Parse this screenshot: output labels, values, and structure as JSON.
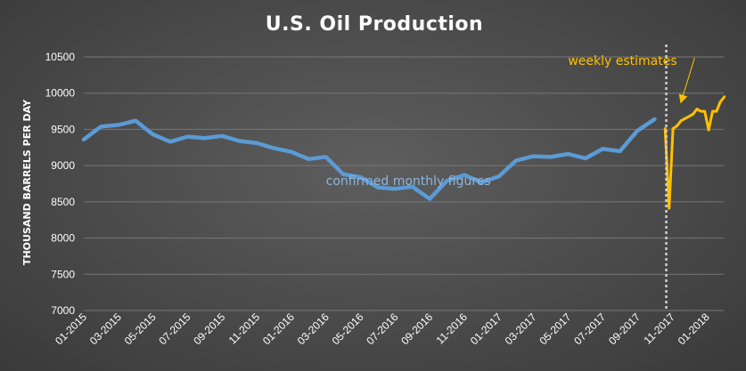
{
  "chart_data": {
    "type": "line",
    "title": "U.S. Oil Production",
    "ylabel": "THOUSAND BARRELS PER DAY",
    "xlabel": "",
    "ylim": [
      7000,
      10500
    ],
    "yticks": [
      7000,
      7500,
      8000,
      8500,
      9000,
      9500,
      10000,
      10500
    ],
    "xlim": [
      "2015-01",
      "2018-02"
    ],
    "xticks": [
      "01-2015",
      "03-2015",
      "05-2015",
      "07-2015",
      "09-2015",
      "11-2015",
      "01-2016",
      "03-2016",
      "05-2016",
      "07-2016",
      "09-2016",
      "11-2016",
      "01-2017",
      "03-2017",
      "05-2017",
      "07-2017",
      "09-2017",
      "11-2017",
      "01-2018"
    ],
    "grid": true,
    "legend": "none",
    "series": [
      {
        "color": "#5b9bd5",
        "x": [
          "2015-01",
          "2015-02",
          "2015-03",
          "2015-04",
          "2015-05",
          "2015-06",
          "2015-07",
          "2015-08",
          "2015-09",
          "2015-10",
          "2015-11",
          "2015-12",
          "2016-01",
          "2016-02",
          "2016-03",
          "2016-04",
          "2016-05",
          "2016-06",
          "2016-07",
          "2016-08",
          "2016-09",
          "2016-10",
          "2016-11",
          "2016-12",
          "2017-01",
          "2017-02",
          "2017-03",
          "2017-04",
          "2017-05",
          "2017-06",
          "2017-07",
          "2017-08",
          "2017-09",
          "2017-10"
        ],
        "values": [
          9360,
          9540,
          9560,
          9620,
          9430,
          9330,
          9400,
          9380,
          9410,
          9340,
          9310,
          9240,
          9190,
          9090,
          9120,
          8880,
          8840,
          8700,
          8680,
          8710,
          8540,
          8790,
          8870,
          8770,
          8850,
          9070,
          9130,
          9120,
          9160,
          9100,
          9230,
          9200,
          9480,
          9640
        ]
      },
      {
        "color": "#ffc000",
        "x": [
          "2017-10-20",
          "2017-10-27",
          "2017-11-03",
          "2017-11-10",
          "2017-11-17",
          "2017-11-24",
          "2017-12-01",
          "2017-12-08",
          "2017-12-15",
          "2017-12-22",
          "2017-12-29",
          "2018-01-05",
          "2018-01-12",
          "2018-01-19",
          "2018-01-26",
          "2018-02-02"
        ],
        "values": [
          9510,
          8410,
          9510,
          9550,
          9620,
          9650,
          9680,
          9710,
          9780,
          9750,
          9750,
          9490,
          9750,
          9750,
          9880,
          9950
        ]
      }
    ],
    "divider_x": "2017-10-22",
    "annotations": [
      {
        "text": "confirmed monthly figures",
        "x": "2016-03",
        "y": 8730,
        "series": 0
      },
      {
        "text": "weekly estimates",
        "x": "2017-05",
        "y": 10390,
        "series": 1,
        "arrow_to": {
          "x": "2017-11-17",
          "y": 9880
        }
      }
    ]
  }
}
